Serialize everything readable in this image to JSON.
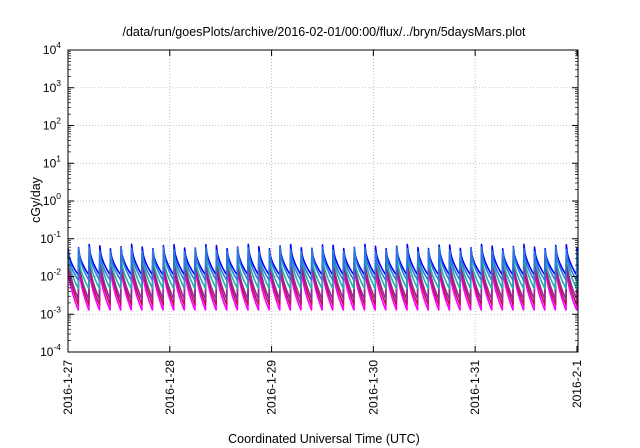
{
  "chart_data": {
    "type": "line",
    "title": "/data/run/goesPlots/archive/2016-02-01/00:00/flux/../bryn/5daysMars.plot",
    "xlabel": "Coordinated Universal Time (UTC)",
    "ylabel": "cGy/day",
    "x_tick_labels": [
      "2016-1-27",
      "2016-1-28",
      "2016-1-29",
      "2016-1-30",
      "2016-1-31",
      "2016-2-1"
    ],
    "xlim": [
      "2016-01-27T00:00",
      "2016-02-01T00:15"
    ],
    "yscale": "log",
    "ylim": [
      0.0001,
      10000
    ],
    "y_ticks": [
      {
        "base": "10",
        "exp": "-4"
      },
      {
        "base": "10",
        "exp": "-3"
      },
      {
        "base": "10",
        "exp": "-2"
      },
      {
        "base": "10",
        "exp": "-1"
      },
      {
        "base": "10",
        "exp": "0"
      },
      {
        "base": "10",
        "exp": "1"
      },
      {
        "base": "10",
        "exp": "2"
      },
      {
        "base": "10",
        "exp": "3"
      },
      {
        "base": "10",
        "exp": "4"
      }
    ],
    "grid": true,
    "legend": "none",
    "sawtooth_period_hours": 2.5,
    "series": [
      {
        "color": "#ff00ff",
        "peak": 0.022,
        "trough": 0.0013
      },
      {
        "color": "#c0105a",
        "peak": 0.03,
        "trough": 0.0018
      },
      {
        "color": "#8e2f8e",
        "peak": 0.036,
        "trough": 0.0025
      },
      {
        "color": "#20b2aa",
        "peak": 0.042,
        "trough": 0.0048
      },
      {
        "color": "#0000ff",
        "peak": 0.062,
        "trough": 0.011
      },
      {
        "color": "#2f7bd8",
        "peak": 0.052,
        "trough": 0.008
      }
    ]
  }
}
